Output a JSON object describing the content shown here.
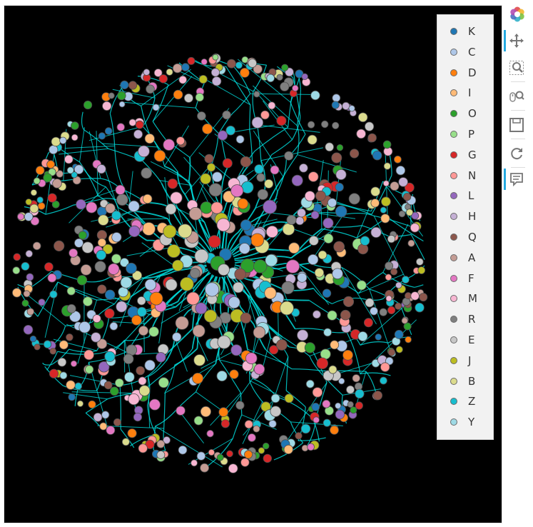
{
  "chart_data": {
    "type": "network-graph",
    "title": "",
    "xlabel": "",
    "ylabel": "",
    "background": "#000000",
    "edge_color": "#00e5e5",
    "legend": {
      "placement": "top-right",
      "items": [
        {
          "label": "K",
          "color": "#1f77b4"
        },
        {
          "label": "C",
          "color": "#aec7e8"
        },
        {
          "label": "D",
          "color": "#ff7f0e"
        },
        {
          "label": "I",
          "color": "#ffbb78"
        },
        {
          "label": "O",
          "color": "#2ca02c"
        },
        {
          "label": "P",
          "color": "#98df8a"
        },
        {
          "label": "G",
          "color": "#d62728"
        },
        {
          "label": "N",
          "color": "#ff9896"
        },
        {
          "label": "L",
          "color": "#9467bd"
        },
        {
          "label": "H",
          "color": "#c5b0d5"
        },
        {
          "label": "Q",
          "color": "#8c564b"
        },
        {
          "label": "A",
          "color": "#c49c94"
        },
        {
          "label": "F",
          "color": "#e377c2"
        },
        {
          "label": "M",
          "color": "#f7b6d2"
        },
        {
          "label": "R",
          "color": "#7f7f7f"
        },
        {
          "label": "E",
          "color": "#c7c7c7"
        },
        {
          "label": "J",
          "color": "#bcbd22"
        },
        {
          "label": "B",
          "color": "#dbdb8d"
        },
        {
          "label": "Z",
          "color": "#17becf"
        },
        {
          "label": "Y",
          "color": "#9edae5"
        }
      ]
    }
  },
  "toolbar": {
    "tools": [
      {
        "name": "bokeh-logo-icon"
      },
      {
        "name": "pan-icon",
        "active": true
      },
      {
        "name": "box-zoom-icon"
      },
      {
        "name": "wheel-zoom-icon"
      },
      {
        "name": "save-icon"
      },
      {
        "name": "reset-icon"
      },
      {
        "name": "hover-icon",
        "active": true
      }
    ]
  }
}
